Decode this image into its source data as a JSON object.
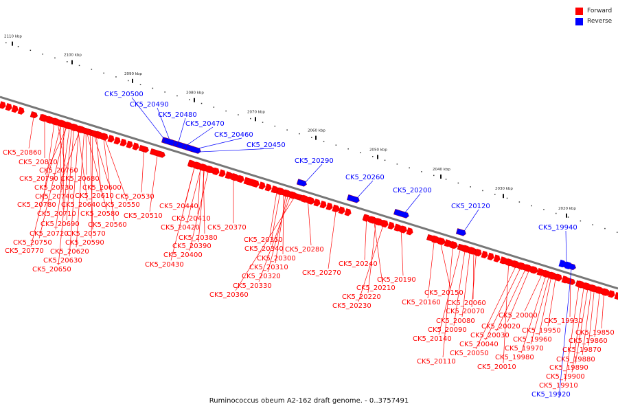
{
  "caption": "Ruminococcus obeum A2-162 draft genome. - 0..3757491",
  "legend": [
    {
      "label": "Forward",
      "color": "#ff0000"
    },
    {
      "label": "Reverse",
      "color": "#0000ff"
    }
  ],
  "colors": {
    "forward": "#ff0000",
    "reverse": "#0000ff",
    "backbone": "#777777"
  },
  "scale": {
    "unit": "kbp",
    "ticks": [
      {
        "label": "2110 kbp",
        "x": 18
      },
      {
        "label": "2100 kbp",
        "x": 105
      },
      {
        "label": "2090 kbp",
        "x": 193
      },
      {
        "label": "2080 kbp",
        "x": 283
      },
      {
        "label": "2070 kbp",
        "x": 372
      },
      {
        "label": "2060 kbp",
        "x": 460
      },
      {
        "label": "2050 kbp",
        "x": 550
      },
      {
        "label": "2040 kbp",
        "x": 642
      },
      {
        "label": "2030 kbp",
        "x": 733
      },
      {
        "label": "2020 kbp",
        "x": 825
      }
    ]
  },
  "genes": [
    {
      "label": "CK5_20860",
      "strand": "forward"
    },
    {
      "label": "CK5_20810",
      "strand": "forward"
    },
    {
      "label": "CK5_20760",
      "strand": "forward"
    },
    {
      "label": "CK5_20790",
      "strand": "forward"
    },
    {
      "label": "CK5_20680",
      "strand": "forward"
    },
    {
      "label": "CK5_20730",
      "strand": "forward"
    },
    {
      "label": "CK5_20600",
      "strand": "forward"
    },
    {
      "label": "CK5_20740",
      "strand": "forward"
    },
    {
      "label": "CK5_20610",
      "strand": "forward"
    },
    {
      "label": "CK5_20530",
      "strand": "forward"
    },
    {
      "label": "CK5_20780",
      "strand": "forward"
    },
    {
      "label": "CK5_20640",
      "strand": "forward"
    },
    {
      "label": "CK5_20550",
      "strand": "forward"
    },
    {
      "label": "CK5_20710",
      "strand": "forward"
    },
    {
      "label": "CK5_20580",
      "strand": "forward"
    },
    {
      "label": "CK5_20510",
      "strand": "forward"
    },
    {
      "label": "CK5_20690",
      "strand": "forward"
    },
    {
      "label": "CK5_20560",
      "strand": "forward"
    },
    {
      "label": "CK5_20720",
      "strand": "forward"
    },
    {
      "label": "CK5_20570",
      "strand": "forward"
    },
    {
      "label": "CK5_20750",
      "strand": "forward"
    },
    {
      "label": "CK5_20590",
      "strand": "forward"
    },
    {
      "label": "CK5_20770",
      "strand": "forward"
    },
    {
      "label": "CK5_20620",
      "strand": "forward"
    },
    {
      "label": "CK5_20630",
      "strand": "forward"
    },
    {
      "label": "CK5_20650",
      "strand": "forward"
    },
    {
      "label": "CK5_20500",
      "strand": "reverse"
    },
    {
      "label": "CK5_20490",
      "strand": "reverse"
    },
    {
      "label": "CK5_20480",
      "strand": "reverse"
    },
    {
      "label": "CK5_20470",
      "strand": "reverse"
    },
    {
      "label": "CK5_20460",
      "strand": "reverse"
    },
    {
      "label": "CK5_20450",
      "strand": "reverse"
    },
    {
      "label": "CK5_20440",
      "strand": "forward"
    },
    {
      "label": "CK5_20410",
      "strand": "forward"
    },
    {
      "label": "CK5_20420",
      "strand": "forward"
    },
    {
      "label": "CK5_20370",
      "strand": "forward"
    },
    {
      "label": "CK5_20380",
      "strand": "forward"
    },
    {
      "label": "CK5_20390",
      "strand": "forward"
    },
    {
      "label": "CK5_20400",
      "strand": "forward"
    },
    {
      "label": "CK5_20430",
      "strand": "forward"
    },
    {
      "label": "CK5_20350",
      "strand": "forward"
    },
    {
      "label": "CK5_20340",
      "strand": "forward"
    },
    {
      "label": "CK5_20300",
      "strand": "forward"
    },
    {
      "label": "CK5_20310",
      "strand": "forward"
    },
    {
      "label": "CK5_20320",
      "strand": "forward"
    },
    {
      "label": "CK5_20330",
      "strand": "forward"
    },
    {
      "label": "CK5_20360",
      "strand": "forward"
    },
    {
      "label": "CK5_20280",
      "strand": "forward"
    },
    {
      "label": "CK5_20270",
      "strand": "forward"
    },
    {
      "label": "CK5_20290",
      "strand": "reverse"
    },
    {
      "label": "CK5_20260",
      "strand": "reverse"
    },
    {
      "label": "CK5_20200",
      "strand": "reverse"
    },
    {
      "label": "CK5_20240",
      "strand": "forward"
    },
    {
      "label": "CK5_20210",
      "strand": "forward"
    },
    {
      "label": "CK5_20190",
      "strand": "forward"
    },
    {
      "label": "CK5_20220",
      "strand": "forward"
    },
    {
      "label": "CK5_20230",
      "strand": "forward"
    },
    {
      "label": "CK5_20120",
      "strand": "reverse"
    },
    {
      "label": "CK5_20150",
      "strand": "forward"
    },
    {
      "label": "CK5_20160",
      "strand": "forward"
    },
    {
      "label": "CK5_20060",
      "strand": "forward"
    },
    {
      "label": "CK5_20070",
      "strand": "forward"
    },
    {
      "label": "CK5_20080",
      "strand": "forward"
    },
    {
      "label": "CK5_20090",
      "strand": "forward"
    },
    {
      "label": "CK5_20140",
      "strand": "forward"
    },
    {
      "label": "CK5_20110",
      "strand": "forward"
    },
    {
      "label": "CK5_20000",
      "strand": "forward"
    },
    {
      "label": "CK5_20020",
      "strand": "forward"
    },
    {
      "label": "CK5_20030",
      "strand": "forward"
    },
    {
      "label": "CK5_20040",
      "strand": "forward"
    },
    {
      "label": "CK5_20050",
      "strand": "forward"
    },
    {
      "label": "CK5_20010",
      "strand": "forward"
    },
    {
      "label": "CK5_19950",
      "strand": "forward"
    },
    {
      "label": "CK5_19960",
      "strand": "forward"
    },
    {
      "label": "CK5_19970",
      "strand": "forward"
    },
    {
      "label": "CK5_19980",
      "strand": "forward"
    },
    {
      "label": "CK5_19940",
      "strand": "reverse"
    },
    {
      "label": "CK5_19930",
      "strand": "forward"
    },
    {
      "label": "CK5_19850",
      "strand": "forward"
    },
    {
      "label": "CK5_19860",
      "strand": "forward"
    },
    {
      "label": "CK5_19870",
      "strand": "forward"
    },
    {
      "label": "CK5_19880",
      "strand": "forward"
    },
    {
      "label": "CK5_19890",
      "strand": "forward"
    },
    {
      "label": "CK5_19900",
      "strand": "forward"
    },
    {
      "label": "CK5_19910",
      "strand": "forward"
    },
    {
      "label": "CK5_19920",
      "strand": "reverse"
    }
  ]
}
